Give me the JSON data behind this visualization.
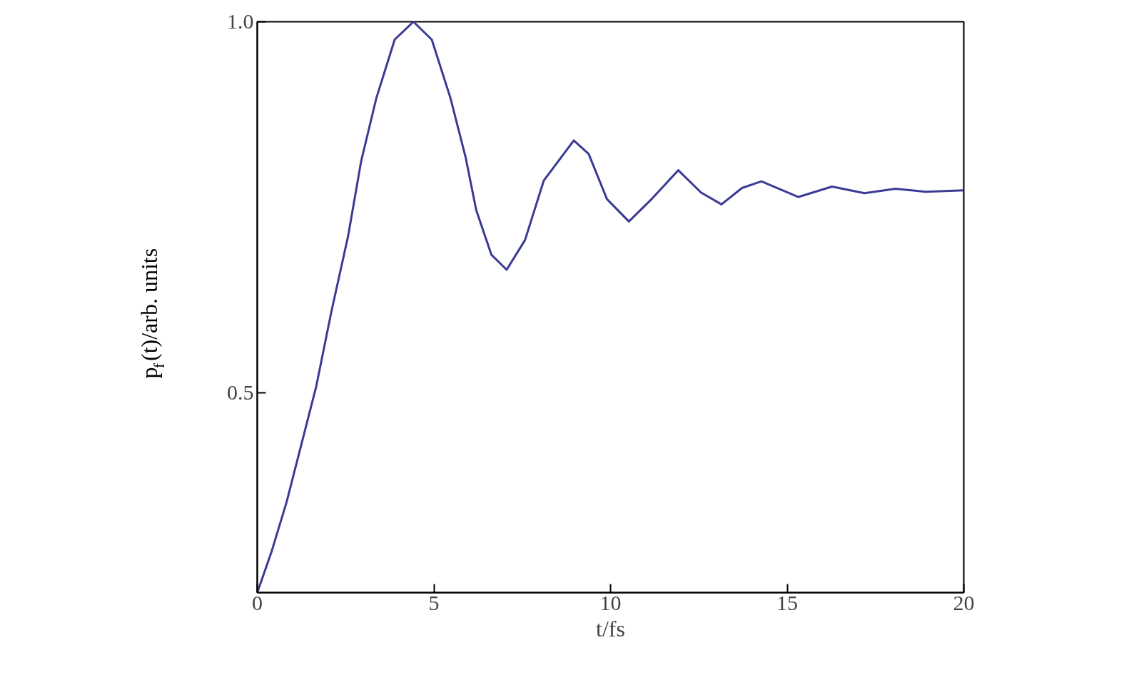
{
  "chart_data": {
    "type": "line",
    "xlabel": "t/fs",
    "ylabel": "p$_{f}$(t)/arb. units",
    "x": [
      0,
      0.41,
      0.83,
      1.67,
      2.1,
      2.57,
      2.94,
      3.37,
      3.89,
      4.42,
      4.94,
      5.47,
      5.9,
      6.2,
      6.63,
      7.06,
      7.58,
      8.11,
      8.96,
      9.38,
      9.9,
      10.52,
      11.14,
      11.92,
      12.56,
      13.14,
      13.72,
      14.27,
      15.32,
      16.27,
      17.19,
      18.07,
      18.92,
      20
    ],
    "series": [
      {
        "color": "#3b3b96",
        "values": [
          0.231,
          0.287,
          0.353,
          0.509,
          0.61,
          0.711,
          0.812,
          0.897,
          0.976,
          1.0,
          0.976,
          0.897,
          0.817,
          0.746,
          0.686,
          0.666,
          0.706,
          0.786,
          0.84,
          0.822,
          0.761,
          0.731,
          0.76,
          0.8,
          0.77,
          0.754,
          0.776,
          0.785,
          0.764,
          0.778,
          0.769,
          0.775,
          0.771,
          0.773
        ]
      }
    ],
    "xlim": [
      0,
      20
    ],
    "ylim": [
      0.231,
      1.0
    ],
    "xticks": [
      0,
      5,
      10,
      15,
      20
    ],
    "yticks": [
      0.5,
      {
        "value": 1.0,
        "label": "1.0"
      }
    ],
    "grid": false
  }
}
